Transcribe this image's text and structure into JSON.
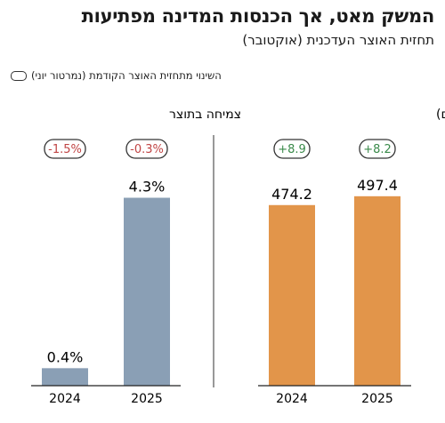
{
  "header": {
    "title": "המשק מאט, אך הכנסות המדינה מפתיעות",
    "subtitle": "תחזית האוצר העדכנית (אוקטובר)",
    "legend": "השינוי מתחזית האוצר הקודמת (נמרטור יוני)"
  },
  "colors": {
    "growth_bar": "#8a9fb5",
    "revenue_bar": "#e2954a",
    "positive_delta": "#3a8a4a",
    "negative_delta": "#c04444"
  },
  "chart_data": [
    {
      "type": "bar",
      "title": "צמיחה בתוצר",
      "categories": [
        "2024",
        "2025"
      ],
      "values": [
        0.4,
        4.3
      ],
      "value_labels": [
        "0.4%",
        "4.3%"
      ],
      "change_labels": [
        "-1.5%",
        "-0.3%"
      ],
      "ylim": [
        0,
        6.1
      ]
    },
    {
      "type": "bar",
      "title": "הכנסות המדינה (במיליארדי שקלים)",
      "categories": [
        "2024",
        "2025"
      ],
      "values": [
        474.2,
        497.4
      ],
      "value_labels": [
        "474.2",
        "497.4"
      ],
      "change_labels": [
        "+8.9",
        "+8.2"
      ],
      "ylim": [
        0,
        700
      ]
    }
  ]
}
